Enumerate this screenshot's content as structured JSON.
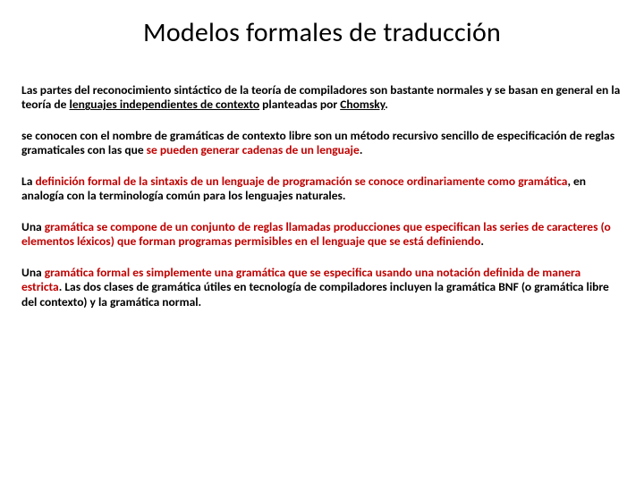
{
  "title": "Modelos formales de traducción",
  "p1": {
    "t1": "Las partes del reconocimiento sintáctico de la teoría de compiladores son bastante normales y se basan en general en la teoría de ",
    "t2": "lenguajes independientes de contexto",
    "t3": " planteadas por ",
    "t4": "Chomsky",
    "t5": "."
  },
  "p2": {
    "t1": "se conocen con el nombre de gramáticas de contexto libre son un método recursivo sencillo de especificación de reglas gramaticales con las que ",
    "t2": "se pueden generar cadenas de un lenguaje",
    "t3": "."
  },
  "p3": {
    "t1": "La ",
    "t2": "definición formal de la sintaxis de un lenguaje de programación se conoce ordinariamente como gramática",
    "t3": ", en analogía con la terminología común para los lenguajes naturales."
  },
  "p4": {
    "t1": "Una ",
    "t2": "gramática se compone de un conjunto de reglas llamadas producciones que especifican las series de caracteres (o elementos léxicos) que forman programas permisibles en el lenguaje que se está definiendo",
    "t3": "."
  },
  "p5": {
    "t1": " Una ",
    "t2": "gramática formal es simplemente una gramática que se especifica usando una notación definida de manera estricta",
    "t3": ". Las dos clases de gramática útiles en tecnología de compiladores incluyen la gramática BNF (o gramática libre del contexto) y la gramática normal."
  },
  "colors": {
    "title": "#000000",
    "body": "#000000",
    "accent": "#c00000",
    "background": "#ffffff"
  },
  "typography": {
    "title_fontsize": 30,
    "body_fontsize": 13.5,
    "body_weight": 700,
    "line_height": 1.22
  }
}
